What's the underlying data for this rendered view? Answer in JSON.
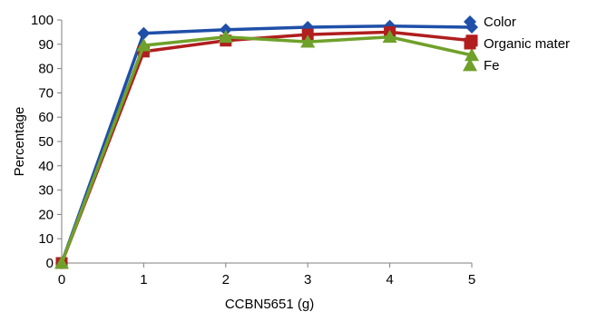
{
  "chart_data": {
    "type": "line",
    "title": "",
    "xlabel": "CCBN5651 (g)",
    "ylabel": "Percentage",
    "x": [
      0,
      1,
      2,
      3,
      4,
      5
    ],
    "xlim": [
      0,
      5
    ],
    "ylim": [
      0,
      100
    ],
    "yticks": [
      0,
      10,
      20,
      30,
      40,
      50,
      60,
      70,
      80,
      90,
      100
    ],
    "grid": false,
    "legend_position": "right",
    "series": [
      {
        "name": "Color",
        "values": [
          0,
          94.5,
          96,
          97,
          97.5,
          97
        ],
        "color": "#1f4fa8",
        "marker": "diamond"
      },
      {
        "name": "Organic mater",
        "values": [
          0,
          87,
          91.5,
          94,
          95,
          91.5
        ],
        "color": "#b01e1e",
        "marker": "square"
      },
      {
        "name": "Fe",
        "values": [
          0,
          89.5,
          93,
          91,
          93,
          85.5
        ],
        "color": "#6fa12a",
        "marker": "triangle"
      }
    ]
  }
}
